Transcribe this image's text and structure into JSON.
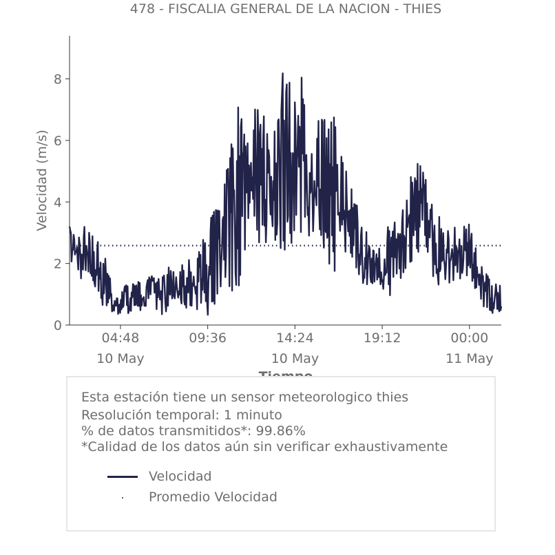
{
  "chart_data": {
    "type": "line",
    "title": "478 - FISCALIA GENERAL DE LA NACION - THIES",
    "xlabel": "Tiempo",
    "ylabel": "Velocidad (m/s)",
    "ylim": [
      0,
      9.4
    ],
    "y_ticks": [
      "0",
      "2",
      "4",
      "6",
      "8"
    ],
    "xlim": [
      "2024-05-10T02:00",
      "2024-05-11T01:45"
    ],
    "x_ticks": [
      {
        "time": "2024-05-10T04:48",
        "label": "04:48",
        "sublabel": "10 May"
      },
      {
        "time": "2024-05-10T09:36",
        "label": "09:36",
        "sublabel": ""
      },
      {
        "time": "2024-05-10T14:24",
        "label": "14:24",
        "sublabel": "10 May"
      },
      {
        "time": "2024-05-10T19:12",
        "label": "19:12",
        "sublabel": ""
      },
      {
        "time": "2024-05-11T00:00",
        "label": "00:00",
        "sublabel": "11 May"
      }
    ],
    "grid": false,
    "series": [
      {
        "name": "Velocidad",
        "style": "line",
        "color": "#222349",
        "x": [
          "2024-05-10T02:00",
          "2024-05-10T02:30",
          "2024-05-10T03:00",
          "2024-05-10T03:30",
          "2024-05-10T04:00",
          "2024-05-10T04:30",
          "2024-05-10T05:00",
          "2024-05-10T05:30",
          "2024-05-10T06:00",
          "2024-05-10T06:30",
          "2024-05-10T07:00",
          "2024-05-10T07:30",
          "2024-05-10T08:00",
          "2024-05-10T08:30",
          "2024-05-10T09:00",
          "2024-05-10T09:30",
          "2024-05-10T10:00",
          "2024-05-10T10:30",
          "2024-05-10T11:00",
          "2024-05-10T11:30",
          "2024-05-10T12:00",
          "2024-05-10T12:30",
          "2024-05-10T13:00",
          "2024-05-10T13:30",
          "2024-05-10T14:00",
          "2024-05-10T14:30",
          "2024-05-10T15:00",
          "2024-05-10T15:30",
          "2024-05-10T16:00",
          "2024-05-10T16:30",
          "2024-05-10T17:00",
          "2024-05-10T17:30",
          "2024-05-10T18:00",
          "2024-05-10T18:30",
          "2024-05-10T19:00",
          "2024-05-10T19:30",
          "2024-05-10T20:00",
          "2024-05-10T20:30",
          "2024-05-10T21:00",
          "2024-05-10T21:30",
          "2024-05-10T22:00",
          "2024-05-10T22:30",
          "2024-05-10T23:00",
          "2024-05-10T23:30",
          "2024-05-11T00:00",
          "2024-05-11T00:30",
          "2024-05-11T01:00",
          "2024-05-11T01:30",
          "2024-05-11T01:45"
        ],
        "low": [
          2.0,
          1.5,
          1.4,
          0.8,
          0.5,
          0.1,
          0.3,
          0.4,
          0.5,
          0.4,
          0.3,
          0.5,
          0.6,
          0.4,
          0.5,
          0.2,
          0.7,
          1.0,
          0.9,
          1.5,
          2.0,
          2.6,
          2.3,
          2.0,
          2.6,
          2.7,
          2.8,
          2.8,
          2.4,
          1.6,
          2.0,
          2.2,
          1.5,
          1.0,
          1.0,
          1.0,
          0.8,
          1.3,
          2.2,
          2.5,
          1.4,
          1.2,
          1.4,
          1.5,
          1.2,
          0.6,
          0.3,
          0.3,
          0.5
        ],
        "high": [
          3.2,
          3.3,
          3.3,
          2.8,
          2.3,
          1.3,
          1.3,
          1.4,
          1.4,
          1.6,
          1.5,
          2.0,
          1.8,
          2.2,
          2.5,
          3.0,
          3.9,
          4.5,
          6.8,
          7.3,
          7.0,
          7.2,
          7.6,
          8.0,
          8.4,
          8.5,
          7.8,
          7.4,
          6.8,
          7.0,
          5.5,
          4.5,
          3.5,
          2.8,
          2.5,
          3.2,
          3.8,
          4.6,
          5.7,
          5.0,
          4.3,
          3.3,
          3.1,
          3.4,
          3.3,
          2.2,
          1.6,
          1.3,
          1.4
        ]
      },
      {
        "name": "Promedio Velocidad",
        "style": "dotted",
        "color": "#222349",
        "value": 2.58
      }
    ]
  },
  "info": {
    "line1": "Esta estación tiene un sensor meteorologico thies",
    "line2": "Resolución temporal: 1 minuto",
    "line3": "% de datos transmitidos*: 99.86%",
    "line4": "*Calidad de los datos aún sin verificar exhaustivamente"
  },
  "legend": {
    "line_label": "Velocidad",
    "dot_label": "Promedio Velocidad"
  },
  "colors": {
    "series": "#222349",
    "text": "#6b6b6b",
    "axis": "#333333",
    "box_border": "#e6e6e6"
  }
}
